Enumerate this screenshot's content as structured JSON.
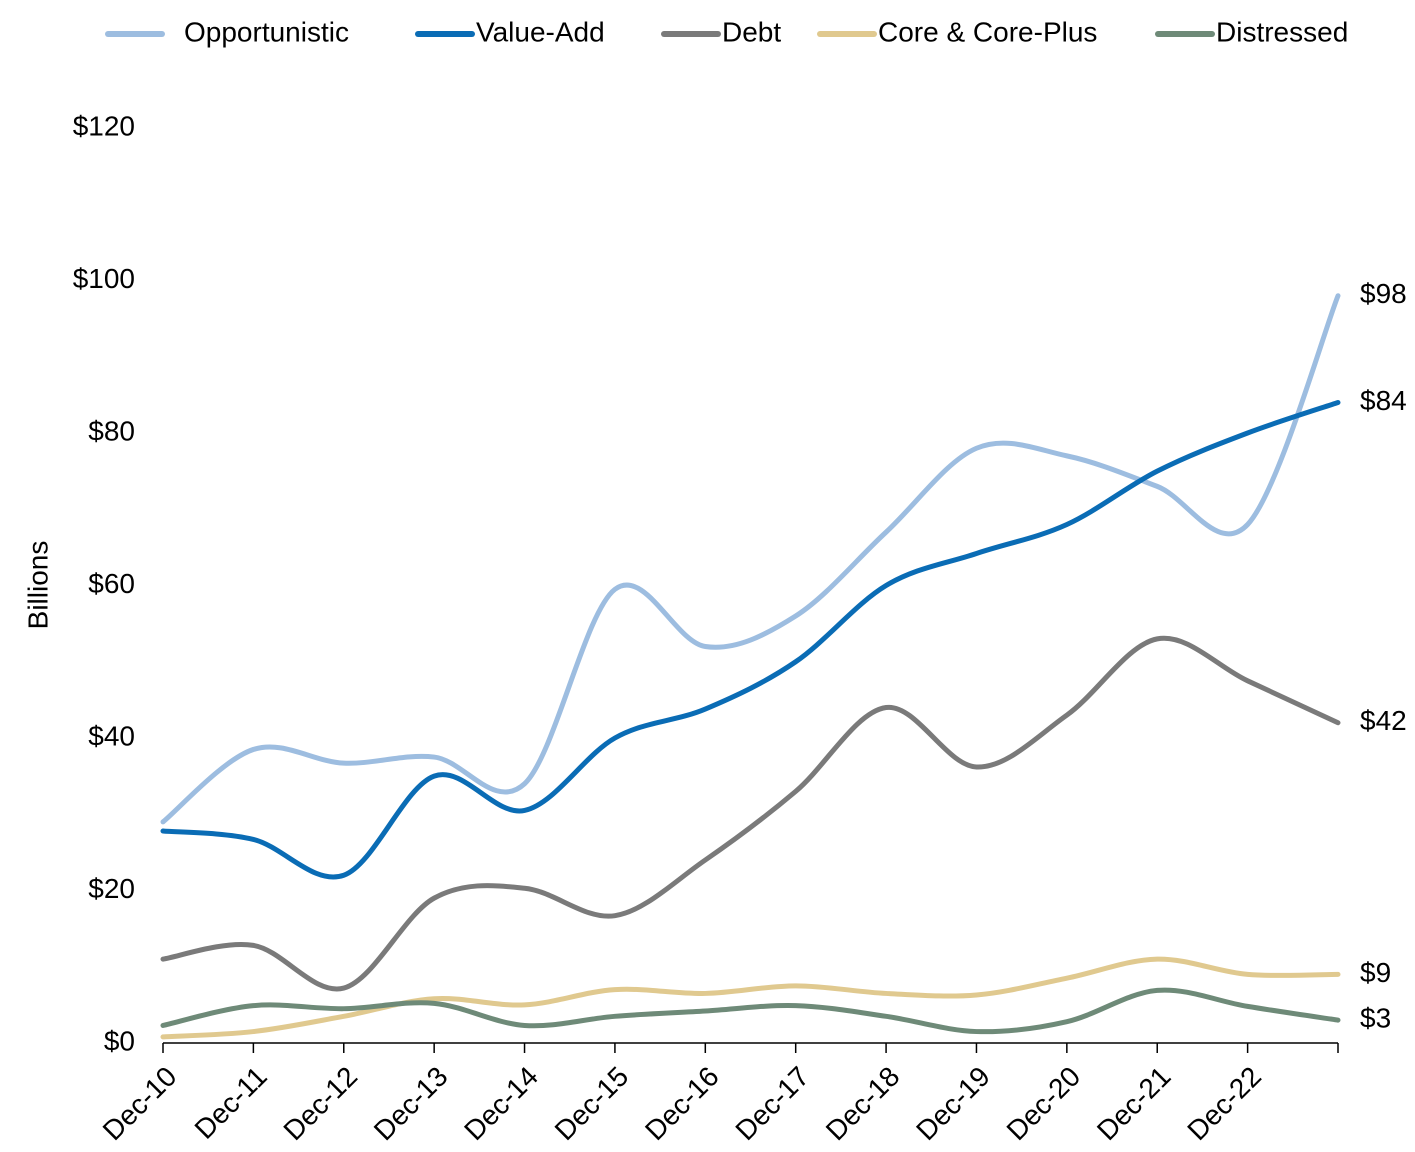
{
  "chart_data": {
    "type": "line",
    "y_label": "Billions",
    "categories": [
      "Dec-10",
      "Dec-11",
      "Dec-12",
      "Dec-13",
      "Dec-14",
      "Dec-15",
      "Dec-16",
      "Dec-17",
      "Dec-18",
      "Dec-19",
      "Dec-20",
      "Dec-21",
      "Dec-22",
      null
    ],
    "series": [
      {
        "name": "Opportunistic",
        "color": "#9dbde0",
        "values": [
          29,
          38.5,
          36.7,
          37.5,
          34,
          59.5,
          52,
          56,
          67,
          78,
          77,
          73,
          68,
          98
        ],
        "value_labels": [
          null,
          null,
          null,
          null,
          null,
          null,
          null,
          null,
          null,
          null,
          null,
          null,
          null,
          "$98"
        ]
      },
      {
        "name": "Value-Add",
        "color": "#0a6cb5",
        "values": [
          27.8,
          26.7,
          22,
          35,
          30.5,
          40,
          43.8,
          50,
          60,
          64.2,
          68,
          75,
          80,
          84
        ],
        "value_labels": [
          null,
          null,
          null,
          null,
          null,
          null,
          null,
          null,
          null,
          null,
          null,
          null,
          null,
          "$84"
        ]
      },
      {
        "name": "Debt",
        "color": "#7a7a7a",
        "values": [
          11,
          12.8,
          7.2,
          19,
          20.3,
          16.7,
          24,
          33,
          44,
          36.2,
          43,
          53,
          47.5,
          42
        ],
        "value_labels": [
          null,
          null,
          null,
          null,
          null,
          null,
          null,
          null,
          null,
          null,
          null,
          null,
          null,
          "$42"
        ]
      },
      {
        "name": "Core & Core-Plus",
        "color": "#e0c98f",
        "values": [
          0.8,
          1.5,
          3.5,
          5.8,
          5,
          7,
          6.5,
          7.5,
          6.5,
          6.3,
          8.5,
          11,
          9,
          9
        ],
        "value_labels": [
          null,
          null,
          null,
          null,
          null,
          null,
          null,
          null,
          null,
          null,
          null,
          null,
          null,
          "$9"
        ]
      },
      {
        "name": "Distressed",
        "color": "#6e8a78",
        "values": [
          2.3,
          4.9,
          4.5,
          5.2,
          2.3,
          3.5,
          4.2,
          4.9,
          3.5,
          1.5,
          2.8,
          6.9,
          4.8,
          3
        ],
        "value_labels": [
          null,
          null,
          null,
          null,
          null,
          null,
          null,
          null,
          null,
          null,
          null,
          null,
          null,
          "$3"
        ]
      }
    ],
    "ylim": [
      0,
      120
    ],
    "yticks": [
      {
        "value": 0,
        "label": "$0"
      },
      {
        "value": 20,
        "label": "$20"
      },
      {
        "value": 40,
        "label": "$40"
      },
      {
        "value": 60,
        "label": "$60"
      },
      {
        "value": 80,
        "label": "$80"
      },
      {
        "value": 100,
        "label": "$100"
      },
      {
        "value": 120,
        "label": "$120"
      }
    ],
    "grid": false,
    "legend": "top"
  }
}
